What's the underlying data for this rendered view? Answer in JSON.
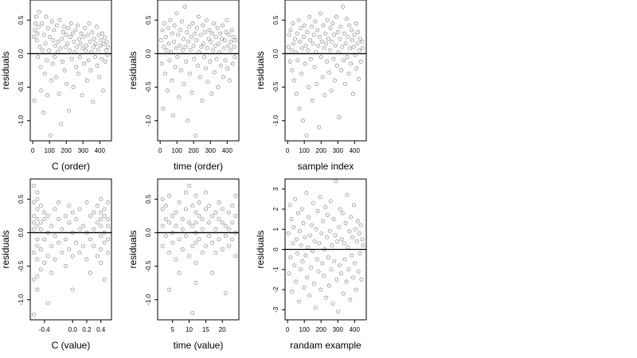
{
  "chart_data": [
    {
      "type": "scatter",
      "xlabel": "C (order)",
      "ylabel": "residuals",
      "xlim": [
        -15,
        470
      ],
      "ylim": [
        -1.3,
        0.8
      ],
      "xticks": [
        0,
        100,
        200,
        300,
        400
      ],
      "yticks": [
        -1.0,
        -0.5,
        0.0,
        0.5
      ],
      "ytick_labels": [
        "-1.0",
        "-0.5",
        "0.0",
        "0.5"
      ],
      "hline": 0,
      "x": [
        6,
        9,
        12,
        16,
        20,
        24,
        28,
        31,
        35,
        38,
        42,
        46,
        50,
        55,
        59,
        63,
        67,
        71,
        76,
        80,
        84,
        88,
        92,
        97,
        101,
        105,
        110,
        114,
        118,
        122,
        126,
        131,
        135,
        139,
        143,
        148,
        152,
        157,
        161,
        165,
        169,
        174,
        178,
        182,
        186,
        190,
        195,
        199,
        203,
        208,
        212,
        216,
        221,
        225,
        229,
        233,
        238,
        242,
        246,
        251,
        255,
        260,
        264,
        268,
        272,
        277,
        281,
        285,
        290,
        294,
        299,
        303,
        307,
        311,
        316,
        320,
        324,
        329,
        333,
        337,
        342,
        346,
        350,
        355,
        359,
        364,
        368,
        372,
        376,
        381,
        385,
        390,
        394,
        398,
        403,
        407,
        411,
        416,
        420,
        424,
        429,
        433,
        437,
        441,
        446,
        450
      ],
      "y": [
        0.25,
        -0.7,
        0.35,
        0.45,
        0.55,
        0.2,
        0.3,
        -0.05,
        0.4,
        0.62,
        0.1,
        -0.2,
        -0.55,
        0.45,
        0.05,
        -0.88,
        0.28,
        -0.3,
        0.15,
        0.55,
        -0.1,
        -0.62,
        0.38,
        0.05,
        0.25,
        -1.22,
        -0.4,
        0.48,
        -0.15,
        0.2,
        0.35,
        -0.05,
        0.12,
        -0.35,
        0.42,
        0.02,
        0.18,
        -0.6,
        0.5,
        0.08,
        -1.05,
        0.22,
        -0.12,
        0.32,
        0.4,
        -0.25,
        0.1,
        0.28,
        -0.45,
        0.15,
        0.38,
        -0.85,
        0.05,
        0.25,
        0.45,
        -0.08,
        0.3,
        -0.5,
        0.18,
        0.02,
        0.35,
        -0.2,
        0.1,
        0.42,
        -0.3,
        0.22,
        -0.05,
        0.15,
        0.3,
        -0.62,
        0.08,
        0.25,
        -0.15,
        0.38,
        0.05,
        0.12,
        -0.4,
        0.28,
        -0.1,
        0.45,
        0.18,
        -0.25,
        0.02,
        0.32,
        -0.72,
        0.1,
        0.22,
        -0.05,
        0.15,
        0.4,
        -0.18,
        0.06,
        0.28,
        -0.35,
        0.12,
        0.2,
        -0.08,
        0.3,
        -0.55,
        0.14,
        0.24,
        -0.12,
        0.05,
        0.18,
        -0.02,
        0.1
      ]
    },
    {
      "type": "scatter",
      "xlabel": "time (order)",
      "ylabel": "residuals",
      "xlim": [
        -15,
        470
      ],
      "ylim": [
        -1.3,
        0.8
      ],
      "xticks": [
        0,
        100,
        200,
        300,
        400
      ],
      "yticks": [
        -1.0,
        -0.5,
        0.0,
        0.5
      ],
      "ytick_labels": [
        "-1.0",
        "-0.5",
        "0.0",
        "0.5"
      ],
      "hline": 0,
      "x": [
        5,
        9,
        13,
        17,
        21,
        26,
        30,
        34,
        38,
        43,
        47,
        51,
        56,
        60,
        64,
        69,
        73,
        77,
        82,
        86,
        90,
        95,
        99,
        103,
        108,
        112,
        116,
        121,
        125,
        129,
        134,
        138,
        142,
        147,
        151,
        155,
        160,
        164,
        168,
        173,
        177,
        181,
        186,
        190,
        194,
        199,
        203,
        207,
        212,
        216,
        220,
        225,
        229,
        233,
        238,
        242,
        246,
        251,
        255,
        259,
        264,
        268,
        272,
        277,
        281,
        285,
        290,
        294,
        298,
        303,
        307,
        311,
        316,
        320,
        324,
        329,
        333,
        337,
        342,
        346,
        350,
        355,
        359,
        363,
        368,
        372,
        376,
        381,
        385,
        389,
        394,
        398,
        402,
        407,
        411,
        415,
        420,
        424,
        428,
        433,
        437,
        441,
        446,
        450
      ],
      "y": [
        0.2,
        -0.15,
        0.35,
        -0.82,
        0.1,
        0.45,
        -0.3,
        0.25,
        0.05,
        -0.55,
        0.38,
        0.15,
        -0.1,
        0.5,
        0.02,
        -0.4,
        0.3,
        -0.92,
        0.18,
        0.42,
        -0.2,
        0.08,
        0.6,
        -0.05,
        0.28,
        -0.65,
        0.12,
        0.35,
        -0.25,
        0.48,
        0.05,
        0.22,
        -0.45,
        0.7,
        0.1,
        -0.12,
        0.32,
        -1.0,
        0.18,
        0.4,
        -0.3,
        0.06,
        0.25,
        -0.58,
        0.45,
        0.12,
        -0.08,
        0.3,
        -1.22,
        0.2,
        0.38,
        -0.18,
        0.55,
        0.02,
        -0.35,
        0.28,
        0.1,
        -0.7,
        0.42,
        0.15,
        -0.05,
        0.32,
        -0.22,
        0.5,
        0.08,
        -0.42,
        0.22,
        0.35,
        -0.12,
        0.18,
        -0.6,
        0.3,
        0.05,
        0.45,
        -0.28,
        0.12,
        0.25,
        -0.08,
        0.38,
        -0.5,
        0.15,
        0.02,
        0.3,
        -0.18,
        0.22,
        0.42,
        -0.35,
        0.08,
        0.2,
        -0.1,
        0.32,
        0.5,
        -0.22,
        0.12,
        0.28,
        -0.4,
        0.05,
        0.18,
        0.35,
        -0.15,
        0.25,
        0.1,
        -0.05,
        0.2
      ]
    },
    {
      "type": "scatter",
      "xlabel": "sample index",
      "ylabel": "residuals",
      "xlim": [
        -15,
        470
      ],
      "ylim": [
        -1.3,
        0.8
      ],
      "xticks": [
        0,
        100,
        200,
        300,
        400
      ],
      "yticks": [
        -1.0,
        -0.5,
        0.0,
        0.5
      ],
      "ytick_labels": [
        "-1.0",
        "-0.5",
        "0.0",
        "0.5"
      ],
      "hline": 0,
      "x": [
        5,
        9,
        14,
        18,
        22,
        27,
        31,
        35,
        40,
        44,
        48,
        53,
        57,
        61,
        66,
        70,
        74,
        79,
        83,
        87,
        92,
        96,
        100,
        105,
        109,
        113,
        118,
        122,
        126,
        131,
        135,
        139,
        144,
        148,
        152,
        157,
        161,
        165,
        170,
        174,
        178,
        183,
        187,
        191,
        196,
        200,
        204,
        209,
        213,
        217,
        222,
        226,
        230,
        235,
        239,
        243,
        248,
        252,
        256,
        261,
        265,
        269,
        274,
        278,
        282,
        287,
        291,
        295,
        300,
        304,
        308,
        313,
        317,
        321,
        326,
        330,
        334,
        339,
        343,
        347,
        352,
        356,
        360,
        365,
        369,
        373,
        378,
        382,
        386,
        391,
        395,
        399,
        404,
        408,
        412,
        417,
        421,
        425,
        430,
        434,
        438,
        443,
        447
      ],
      "y": [
        0.1,
        0.28,
        -0.12,
        0.35,
        0.05,
        -0.25,
        0.45,
        0.15,
        -0.4,
        0.22,
        0.02,
        -0.6,
        0.3,
        -0.1,
        0.5,
        -0.82,
        0.18,
        0.38,
        -0.3,
        0.08,
        -1.0,
        0.25,
        0.42,
        -0.15,
        0.12,
        -1.22,
        0.32,
        0.05,
        -0.5,
        0.55,
        0.2,
        -0.08,
        0.4,
        -0.7,
        0.15,
        0.28,
        -0.2,
        0.48,
        0.02,
        -0.45,
        0.35,
        0.12,
        -1.1,
        0.25,
        0.6,
        -0.05,
        0.18,
        -0.35,
        0.42,
        0.08,
        -0.62,
        0.3,
        0.15,
        -0.12,
        0.5,
        0.22,
        -0.28,
        0.05,
        0.38,
        -0.55,
        0.18,
        0.45,
        -0.08,
        0.28,
        -0.4,
        0.12,
        0.55,
        -0.18,
        0.32,
        0.02,
        -0.95,
        0.22,
        0.4,
        -0.25,
        0.1,
        0.7,
        -0.1,
        0.3,
        -0.45,
        0.15,
        0.52,
        -0.05,
        0.25,
        -0.3,
        0.42,
        0.08,
        -0.15,
        0.35,
        0.2,
        -0.6,
        0.1,
        0.28,
        -0.02,
        0.45,
        -0.22,
        0.15,
        0.32,
        -0.38,
        0.05,
        0.22,
        -0.12,
        0.18,
        0.08
      ]
    },
    {
      "type": "scatter",
      "xlabel": "C (value)",
      "ylabel": "residuals",
      "xlim": [
        -0.6,
        0.55
      ],
      "ylim": [
        -1.3,
        0.8
      ],
      "xticks": [
        -0.4,
        0.0,
        0.2,
        0.4
      ],
      "xtick_labels": [
        "-0.4",
        "0.0",
        "0.2",
        "0.4"
      ],
      "yticks": [
        -1.0,
        -0.5,
        0.0,
        0.5
      ],
      "ytick_labels": [
        "-1.0",
        "-0.5",
        "0.0",
        "0.5"
      ],
      "hline": 0,
      "x": [
        -0.55,
        -0.55,
        -0.55,
        -0.55,
        -0.55,
        -0.55,
        -0.55,
        -0.55,
        -0.5,
        -0.5,
        -0.5,
        -0.5,
        -0.5,
        -0.5,
        -0.5,
        -0.5,
        -0.5,
        -0.5,
        -0.45,
        -0.45,
        -0.45,
        -0.45,
        -0.45,
        -0.4,
        -0.4,
        -0.4,
        -0.4,
        -0.35,
        -0.35,
        -0.35,
        -0.35,
        -0.3,
        -0.3,
        -0.3,
        -0.25,
        -0.25,
        -0.25,
        -0.2,
        -0.2,
        -0.2,
        -0.15,
        -0.15,
        -0.1,
        -0.1,
        -0.1,
        -0.05,
        -0.05,
        -0.05,
        0.0,
        0.0,
        0.0,
        0.0,
        0.05,
        0.05,
        0.1,
        0.1,
        0.1,
        0.15,
        0.15,
        0.2,
        0.2,
        0.2,
        0.25,
        0.25,
        0.25,
        0.3,
        0.3,
        0.3,
        0.35,
        0.35,
        0.35,
        0.4,
        0.4,
        0.4,
        0.4,
        0.4,
        0.4,
        0.4,
        0.45,
        0.45,
        0.45,
        0.45,
        0.45,
        0.5,
        0.5,
        0.5,
        0.5,
        0.5
      ],
      "y": [
        0.7,
        0.45,
        0.25,
        0.05,
        -0.3,
        -0.7,
        -1.22,
        0.15,
        0.6,
        0.35,
        0.1,
        -0.1,
        -0.4,
        -0.65,
        -0.85,
        0.5,
        0.2,
        -0.2,
        0.4,
        0.15,
        -0.25,
        -0.55,
        0.05,
        0.3,
        -0.1,
        -0.45,
        0.2,
        0.25,
        0.0,
        -0.35,
        -1.05,
        0.1,
        -0.2,
        -0.6,
        0.35,
        -0.05,
        -0.4,
        0.2,
        -0.15,
        0.45,
        0.05,
        -0.3,
        0.25,
        -0.1,
        -0.5,
        0.15,
        -0.25,
        0.4,
        0.3,
        0.0,
        -0.35,
        -0.85,
        0.2,
        -0.15,
        0.35,
        0.05,
        -0.3,
        0.1,
        -0.2,
        0.45,
        0.0,
        -0.4,
        0.25,
        -0.1,
        -0.6,
        0.3,
        0.05,
        -0.2,
        0.15,
        -0.35,
        0.4,
        0.5,
        0.3,
        0.1,
        -0.05,
        -0.25,
        -0.45,
        0.2,
        0.35,
        0.0,
        -0.15,
        -0.7,
        0.25,
        0.45,
        0.1,
        -0.1,
        -0.3,
        0.2
      ]
    },
    {
      "type": "scatter",
      "xlabel": "time (value)",
      "ylabel": "residuals",
      "xlim": [
        0.5,
        25
      ],
      "ylim": [
        -1.3,
        0.8
      ],
      "xticks": [
        5,
        10,
        15,
        20
      ],
      "yticks": [
        -1.0,
        -0.5,
        0.0,
        0.5
      ],
      "ytick_labels": [
        "-1.0",
        "-0.5",
        "0.0",
        "0.5"
      ],
      "hline": 0,
      "x": [
        2,
        2,
        2,
        2,
        3,
        3,
        3,
        4,
        4,
        4,
        4,
        5,
        5,
        5,
        6,
        6,
        6,
        7,
        7,
        7,
        8,
        8,
        8,
        9,
        9,
        9,
        10,
        10,
        10,
        11,
        11,
        11,
        11,
        12,
        12,
        12,
        12,
        12,
        12,
        12,
        13,
        13,
        13,
        14,
        14,
        14,
        15,
        15,
        15,
        16,
        16,
        16,
        17,
        17,
        17,
        18,
        18,
        18,
        19,
        19,
        19,
        20,
        20,
        20,
        21,
        21,
        21,
        22,
        22,
        22,
        23,
        23,
        23,
        24,
        24,
        24,
        24
      ],
      "y": [
        0.35,
        0.1,
        -0.2,
        0.5,
        0.2,
        -0.05,
        0.4,
        0.15,
        -0.3,
        0.55,
        -0.85,
        0.25,
        0.0,
        -0.15,
        0.3,
        -0.4,
        0.1,
        0.45,
        -0.1,
        -0.6,
        0.2,
        0.05,
        -0.25,
        0.35,
        -0.05,
        0.6,
        0.15,
        -0.35,
        0.7,
        0.4,
        0.1,
        -0.2,
        -1.2,
        0.3,
        0.15,
        0.0,
        -0.15,
        -0.45,
        -0.75,
        0.55,
        0.25,
        -0.1,
        0.45,
        0.2,
        -0.3,
        0.05,
        0.35,
        -0.2,
        0.6,
        0.15,
        -0.05,
        0.4,
        0.25,
        -0.15,
        -0.6,
        0.3,
        0.05,
        -0.3,
        0.2,
        -0.1,
        0.45,
        0.15,
        -0.25,
        0.35,
        0.1,
        -0.05,
        -0.9,
        0.3,
        0.05,
        -0.2,
        0.4,
        0.15,
        -0.1,
        0.55,
        0.25,
        0.0,
        -0.35
      ]
    },
    {
      "type": "scatter",
      "xlabel": "randam example",
      "ylabel": "residuals",
      "xlim": [
        -15,
        470
      ],
      "ylim": [
        -3.5,
        3.5
      ],
      "xticks": [
        0,
        100,
        200,
        300,
        400
      ],
      "yticks": [
        -3,
        -2,
        -1,
        0,
        1,
        2,
        3
      ],
      "hline": 0,
      "x": [
        5,
        9,
        14,
        18,
        23,
        27,
        32,
        36,
        41,
        45,
        50,
        54,
        59,
        63,
        68,
        72,
        77,
        81,
        86,
        90,
        95,
        99,
        104,
        108,
        113,
        117,
        122,
        126,
        131,
        135,
        140,
        144,
        149,
        153,
        158,
        162,
        167,
        171,
        176,
        180,
        185,
        189,
        194,
        198,
        203,
        207,
        212,
        216,
        221,
        225,
        230,
        234,
        239,
        243,
        248,
        252,
        257,
        261,
        266,
        270,
        275,
        279,
        284,
        288,
        293,
        297,
        302,
        306,
        311,
        315,
        320,
        324,
        329,
        333,
        338,
        342,
        347,
        351,
        356,
        360,
        365,
        369,
        374,
        378,
        383,
        387,
        392,
        396,
        401,
        405,
        410,
        414,
        419,
        423,
        428,
        432,
        437,
        441,
        446,
        450
      ],
      "y": [
        0.8,
        -1.2,
        2.2,
        -0.4,
        1.5,
        -2.1,
        0.3,
        1.1,
        -0.8,
        2.5,
        -1.6,
        0.5,
        -0.2,
        1.8,
        -2.6,
        0.9,
        -1.0,
        0.2,
        2.0,
        -0.6,
        1.3,
        -1.9,
        0.6,
        -0.3,
        2.8,
        -1.4,
        0.1,
        1.6,
        -2.3,
        0.7,
        -0.9,
        1.2,
        -0.1,
        2.3,
        -1.7,
        0.4,
        -2.9,
        1.0,
        -0.5,
        1.9,
        -1.1,
        0.3,
        2.6,
        -2.0,
        0.8,
        -0.7,
        1.4,
        -1.3,
        0.0,
        2.1,
        -2.4,
        0.6,
        1.7,
        -0.4,
        -1.8,
        0.9,
        2.4,
        -1.0,
        0.2,
        -2.7,
        1.5,
        -0.6,
        0.7,
        3.4,
        -1.5,
        0.4,
        -3.1,
        1.1,
        -0.8,
        2.0,
        -1.2,
        0.5,
        1.8,
        -2.2,
        0.3,
        -0.5,
        1.3,
        -1.6,
        2.7,
        0.1,
        -1.0,
        0.9,
        -2.5,
        1.6,
        -0.3,
        0.6,
        -1.4,
        2.2,
        -0.7,
        1.0,
        -2.0,
        0.4,
        1.4,
        -1.1,
        0.8,
        -0.2,
        1.2,
        -1.5,
        0.5,
        0.2
      ]
    }
  ]
}
